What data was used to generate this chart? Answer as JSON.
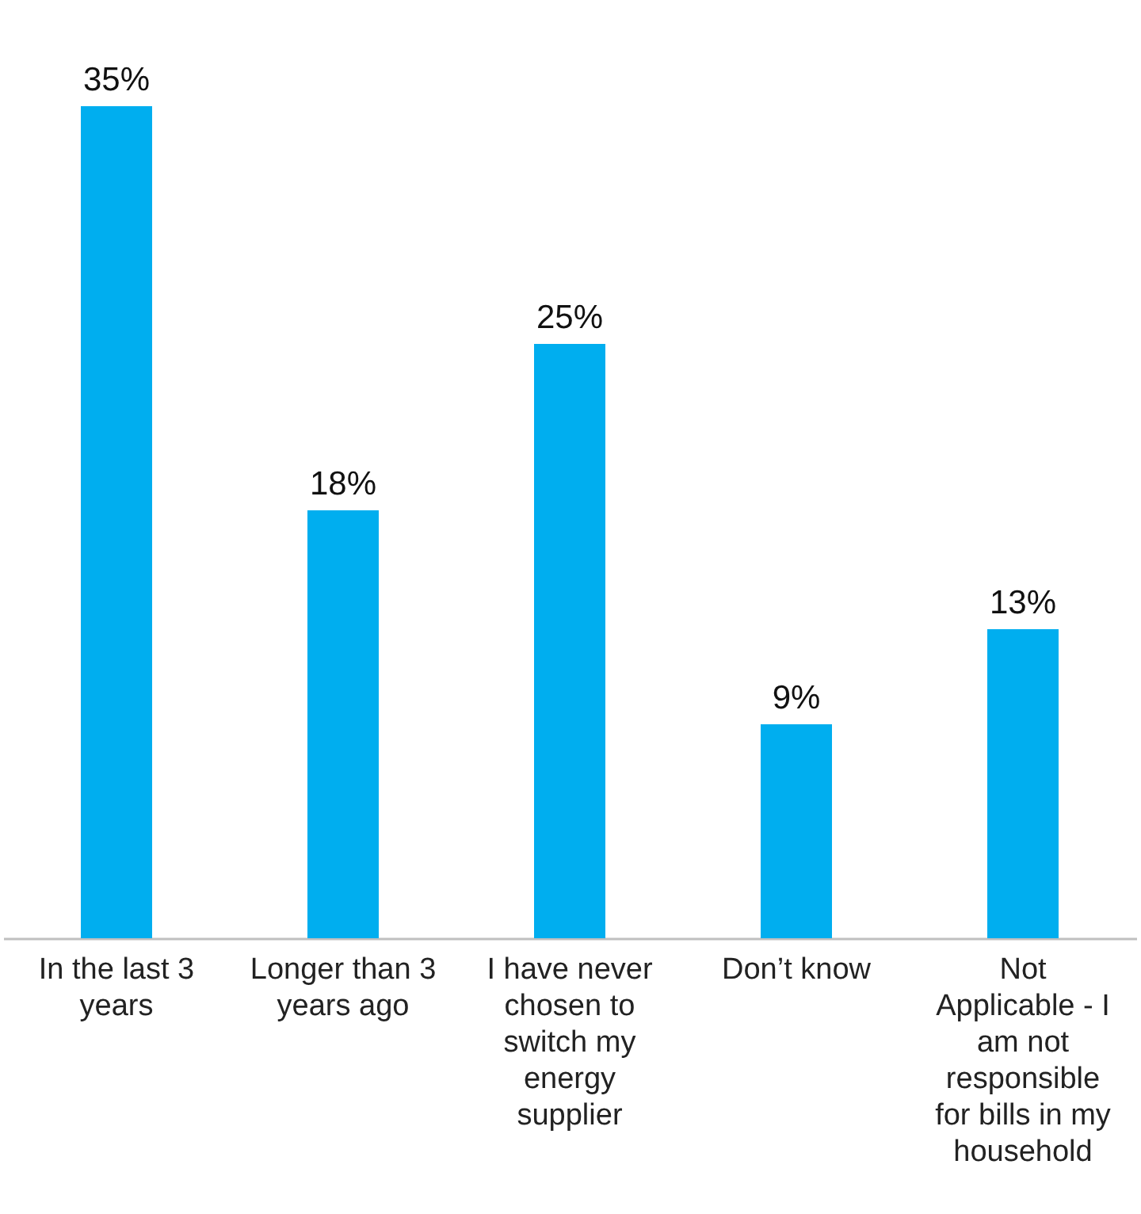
{
  "chart_data": {
    "type": "bar",
    "categories": [
      "In the last 3 years",
      "Longer than 3 years ago",
      "I have never chosen to switch my energy supplier",
      "Don’t know",
      "Not Applicable - I am not responsible for bills in my household"
    ],
    "values": [
      35,
      18,
      25,
      9,
      13
    ],
    "value_labels": [
      "35%",
      "18%",
      "25%",
      "9%",
      "13%"
    ],
    "color": "#00aeef",
    "grid": false
  }
}
